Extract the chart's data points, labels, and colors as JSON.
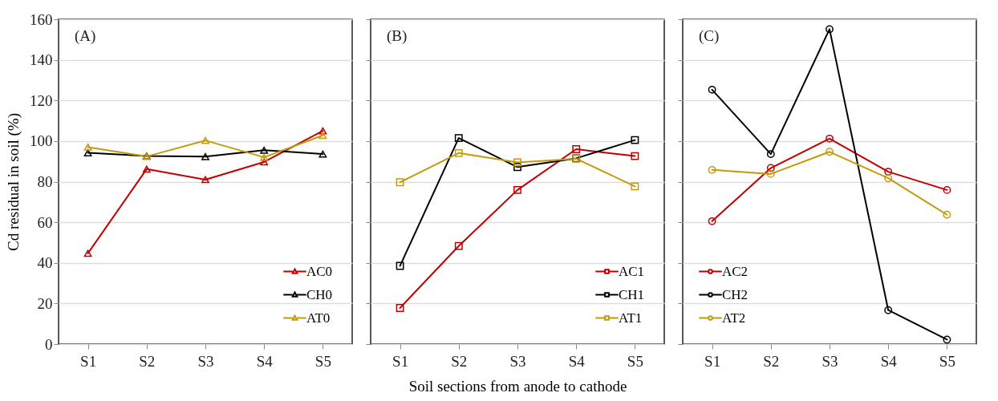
{
  "chart_data": [
    {
      "type": "line",
      "annotations": [
        "(A)"
      ],
      "ylabel": "Cd residual in soil (%)",
      "categories": [
        "S1",
        "S2",
        "S3",
        "S4",
        "S5"
      ],
      "ylim": [
        0,
        160
      ],
      "yticks": [
        0,
        20,
        40,
        60,
        80,
        100,
        120,
        140,
        160
      ],
      "grid": "y",
      "legend": "bottom right",
      "marker": "triangle",
      "series": [
        {
          "name": "AC0",
          "color": "#c00000",
          "values": [
            44.7,
            86.2,
            81.0,
            89.7,
            105.0
          ]
        },
        {
          "name": "CH0",
          "color": "#000000",
          "values": [
            94.2,
            92.6,
            92.3,
            95.5,
            93.6
          ]
        },
        {
          "name": "AT0",
          "color": "#c49a0c",
          "values": [
            97.0,
            92.4,
            100.3,
            92.0,
            102.8
          ]
        }
      ]
    },
    {
      "type": "line",
      "annotations": [
        "(B)"
      ],
      "xlabel": "Soil sections from anode to cathode",
      "categories": [
        "S1",
        "S2",
        "S3",
        "S4",
        "S5"
      ],
      "ylim": [
        0,
        160
      ],
      "yticks": [
        0,
        20,
        40,
        60,
        80,
        100,
        120,
        140,
        160
      ],
      "tick_labels": "x",
      "grid": "y",
      "legend": "bottom right",
      "marker": "square",
      "series": [
        {
          "name": "AC1",
          "color": "#c00000",
          "values": [
            17.8,
            48.3,
            75.9,
            96.0,
            92.6
          ]
        },
        {
          "name": "CH1",
          "color": "#000000",
          "values": [
            38.5,
            101.5,
            87.2,
            91.5,
            100.5
          ]
        },
        {
          "name": "AT1",
          "color": "#c49a0c",
          "values": [
            79.7,
            94.1,
            89.5,
            91.3,
            77.7
          ]
        }
      ]
    },
    {
      "type": "line",
      "annotations": [
        "(C)"
      ],
      "categories": [
        "S1",
        "S2",
        "S3",
        "S4",
        "S5"
      ],
      "ylim": [
        0,
        160
      ],
      "yticks": [
        0,
        20,
        40,
        60,
        80,
        100,
        120,
        140,
        160
      ],
      "tick_labels": "x",
      "grid": "y",
      "legend": "bottom left",
      "marker": "circle",
      "series": [
        {
          "name": "AC2",
          "color": "#c00000",
          "values": [
            60.5,
            86.7,
            101.2,
            84.9,
            75.9
          ]
        },
        {
          "name": "CH2",
          "color": "#000000",
          "values": [
            125.3,
            93.6,
            155.1,
            16.7,
            2.2
          ]
        },
        {
          "name": "AT2",
          "color": "#c49a0c",
          "values": [
            85.8,
            83.8,
            94.7,
            81.7,
            63.7
          ]
        }
      ]
    }
  ]
}
